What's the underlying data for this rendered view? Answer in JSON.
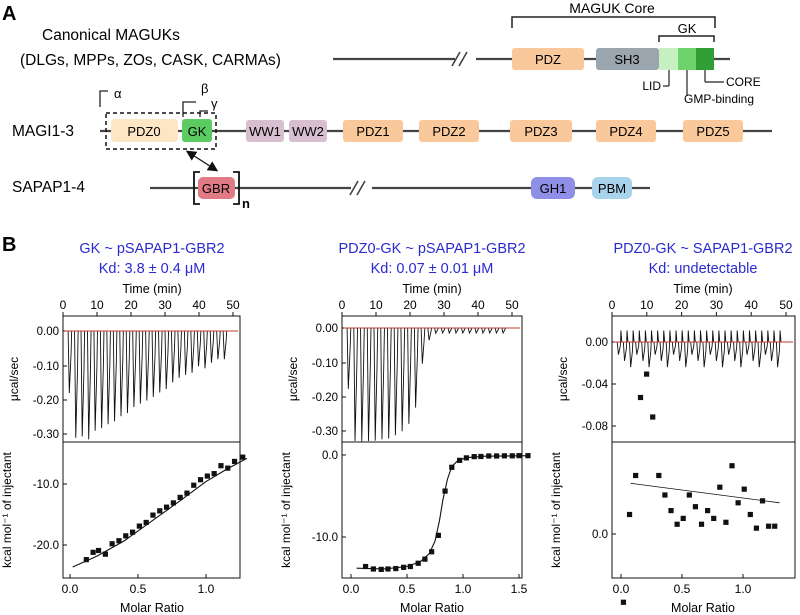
{
  "panelA": {
    "label": "A",
    "canonical_title": "Canonical MAGUKs",
    "canonical_members": "(DLGs, MPPs, ZOs, CASK, CARMAs)",
    "core_label": "MAGUK Core",
    "gk_bracket_label": "GK",
    "canonical_domains": [
      "PDZ",
      "SH3"
    ],
    "gk_sub_labels": [
      "LID",
      "GMP-binding",
      "CORE"
    ],
    "magi_label": "MAGI1-3",
    "magi_domains": [
      "PDZ0",
      "GK",
      "WW1",
      "WW2",
      "PDZ1",
      "PDZ2",
      "PDZ3",
      "PDZ4",
      "PDZ5"
    ],
    "greek": [
      "α",
      "β",
      "γ"
    ],
    "sapap_label": "SAPAP1-4",
    "sapap_domains": [
      "GBR",
      "GH1",
      "PBM"
    ],
    "repeat_label": "n",
    "colors": {
      "pdz": "#f9c89b",
      "pdz0": "#fde6c4",
      "sh3": "#9aa5ad",
      "gk": "#5ccc62",
      "gk_lid": "#c6f0c0",
      "gk_gmp": "#6dd36a",
      "gk_core": "#2e9e35",
      "ww": "#d8bfd0",
      "gbr": "#e07b86",
      "gh1": "#8f8fe8",
      "pbm": "#a9d3ec"
    }
  },
  "panelB": {
    "label": "B",
    "panels": [
      {
        "title1": "GK ~ pSAPAP1-GBR2",
        "title2": "Kd: 3.8 ± 0.4 μM",
        "top_xlabel": "Time (min)",
        "top_xticks": [
          "0",
          "10",
          "20",
          "30",
          "40",
          "50"
        ],
        "top_ylabel": "μcal/sec",
        "top_yticks": [
          "0.00",
          "-0.10",
          "-0.20",
          "-0.30"
        ],
        "bottom_ylabel": "kcal mol⁻¹ of injectant",
        "bottom_yticks": [
          "-10.0",
          "-20.0"
        ],
        "bottom_xlabel": "Molar Ratio",
        "bottom_xticks": [
          "0.0",
          "0.5",
          "1.0"
        ]
      },
      {
        "title1": "PDZ0-GK ~ pSAPAP1-GBR2",
        "title2": "Kd: 0.07 ± 0.01 μM",
        "top_xlabel": "Time (min)",
        "top_xticks": [
          "0",
          "10",
          "20",
          "30",
          "40",
          "50"
        ],
        "top_ylabel": "μcal/sec",
        "top_yticks": [
          "0.00",
          "-0.10",
          "-0.20",
          "-0.30"
        ],
        "bottom_ylabel": "kcal mol⁻¹ of injectant",
        "bottom_yticks": [
          "0.0",
          "-10.0"
        ],
        "bottom_xlabel": "Molar Ratio",
        "bottom_xticks": [
          "0.0",
          "0.5",
          "1.0",
          "1.5"
        ]
      },
      {
        "title1": "PDZ0-GK ~ SAPAP1-GBR2",
        "title2": "Kd: undetectable",
        "top_xlabel": "Time (min)",
        "top_xticks": [
          "0",
          "10",
          "20",
          "30",
          "40",
          "50"
        ],
        "top_ylabel": "μcal/sec",
        "top_yticks": [
          "0.00",
          "-0.04",
          "-0.08"
        ],
        "bottom_ylabel": "kcal mol⁻¹ of injectant",
        "bottom_yticks": [
          "0.0"
        ],
        "bottom_xlabel": "Molar Ratio",
        "bottom_xticks": [
          "0.0",
          "0.5",
          "1.0"
        ]
      }
    ]
  },
  "chart_data": [
    {
      "type": "scatter",
      "title": "GK ~ pSAPAP1-GBR2",
      "xlabel": "Molar Ratio",
      "ylabel": "kcal mol⁻¹ of injectant",
      "xlim": [
        -0.05,
        1.35
      ],
      "ylim": [
        -25,
        -4
      ],
      "points": [
        [
          0.12,
          -22.4
        ],
        [
          0.17,
          -21.2
        ],
        [
          0.21,
          -20.9
        ],
        [
          0.26,
          -21.5
        ],
        [
          0.31,
          -19.8
        ],
        [
          0.36,
          -19.3
        ],
        [
          0.41,
          -18.5
        ],
        [
          0.46,
          -17.9
        ],
        [
          0.51,
          -16.9
        ],
        [
          0.56,
          -16.3
        ],
        [
          0.61,
          -15.1
        ],
        [
          0.66,
          -14.4
        ],
        [
          0.71,
          -13.8
        ],
        [
          0.76,
          -13.1
        ],
        [
          0.81,
          -12.2
        ],
        [
          0.86,
          -11.5
        ],
        [
          0.91,
          -10.2
        ],
        [
          0.96,
          -9.3
        ],
        [
          1.01,
          -8.7
        ],
        [
          1.06,
          -8.3
        ],
        [
          1.11,
          -7.0
        ],
        [
          1.16,
          -7.4
        ],
        [
          1.21,
          -6.3
        ],
        [
          1.27,
          -5.6
        ]
      ],
      "fit": [
        [
          0.02,
          -23.6
        ],
        [
          0.2,
          -21.8
        ],
        [
          0.4,
          -19.3
        ],
        [
          0.6,
          -16.1
        ],
        [
          0.8,
          -12.9
        ],
        [
          1.0,
          -9.6
        ],
        [
          1.15,
          -7.6
        ],
        [
          1.3,
          -5.8
        ]
      ]
    },
    {
      "type": "scatter",
      "title": "PDZ0-GK ~ pSAPAP1-GBR2",
      "xlabel": "Molar Ratio",
      "ylabel": "kcal mol⁻¹ of injectant",
      "xlim": [
        -0.08,
        1.7
      ],
      "ylim": [
        -15.5,
        1.2
      ],
      "points": [
        [
          0.13,
          -13.6
        ],
        [
          0.2,
          -13.9
        ],
        [
          0.27,
          -13.95
        ],
        [
          0.33,
          -13.9
        ],
        [
          0.4,
          -13.85
        ],
        [
          0.47,
          -13.7
        ],
        [
          0.53,
          -13.6
        ],
        [
          0.6,
          -13.2
        ],
        [
          0.66,
          -12.7
        ],
        [
          0.72,
          -11.8
        ],
        [
          0.78,
          -9.8
        ],
        [
          0.84,
          -4.4
        ],
        [
          0.9,
          -1.5
        ],
        [
          0.97,
          -0.65
        ],
        [
          1.03,
          -0.35
        ],
        [
          1.1,
          -0.2
        ],
        [
          1.16,
          -0.18
        ],
        [
          1.23,
          -0.12
        ],
        [
          1.3,
          -0.12
        ],
        [
          1.37,
          -0.1
        ],
        [
          1.44,
          -0.1
        ],
        [
          1.5,
          -0.08
        ],
        [
          1.58,
          -0.08
        ]
      ],
      "fit": [
        [
          0.05,
          -13.8
        ],
        [
          0.3,
          -13.9
        ],
        [
          0.5,
          -13.6
        ],
        [
          0.62,
          -13.0
        ],
        [
          0.7,
          -12.0
        ],
        [
          0.75,
          -10.5
        ],
        [
          0.79,
          -8.0
        ],
        [
          0.82,
          -5.5
        ],
        [
          0.86,
          -3.0
        ],
        [
          0.9,
          -1.4
        ],
        [
          0.96,
          -0.6
        ],
        [
          1.05,
          -0.3
        ],
        [
          1.2,
          -0.15
        ],
        [
          1.6,
          -0.08
        ]
      ]
    },
    {
      "type": "scatter",
      "title": "PDZ0-GK ~ SAPAP1-GBR2",
      "xlabel": "Molar Ratio",
      "ylabel": "kcal mol⁻¹ of injectant",
      "xlim": [
        -0.07,
        1.35
      ],
      "ylim": [
        -0.45,
        1.0
      ],
      "points": [
        [
          0.02,
          -0.35
        ],
        [
          0.07,
          0.1
        ],
        [
          0.12,
          0.3
        ],
        [
          0.16,
          0.7
        ],
        [
          0.21,
          0.82
        ],
        [
          0.26,
          0.6
        ],
        [
          0.31,
          0.3
        ],
        [
          0.36,
          0.2
        ],
        [
          0.41,
          0.12
        ],
        [
          0.46,
          0.05
        ],
        [
          0.51,
          0.08
        ],
        [
          0.56,
          0.2
        ],
        [
          0.61,
          0.14
        ],
        [
          0.66,
          0.05
        ],
        [
          0.71,
          0.12
        ],
        [
          0.76,
          0.08
        ],
        [
          0.81,
          0.24
        ],
        [
          0.86,
          0.06
        ],
        [
          0.91,
          0.35
        ],
        [
          0.96,
          0.16
        ],
        [
          1.01,
          0.23
        ],
        [
          1.06,
          0.1
        ],
        [
          1.11,
          0.03
        ],
        [
          1.16,
          0.17
        ],
        [
          1.21,
          0.04
        ],
        [
          1.26,
          0.04
        ]
      ],
      "fit": [
        [
          0.08,
          0.26
        ],
        [
          1.3,
          0.16
        ]
      ]
    }
  ]
}
